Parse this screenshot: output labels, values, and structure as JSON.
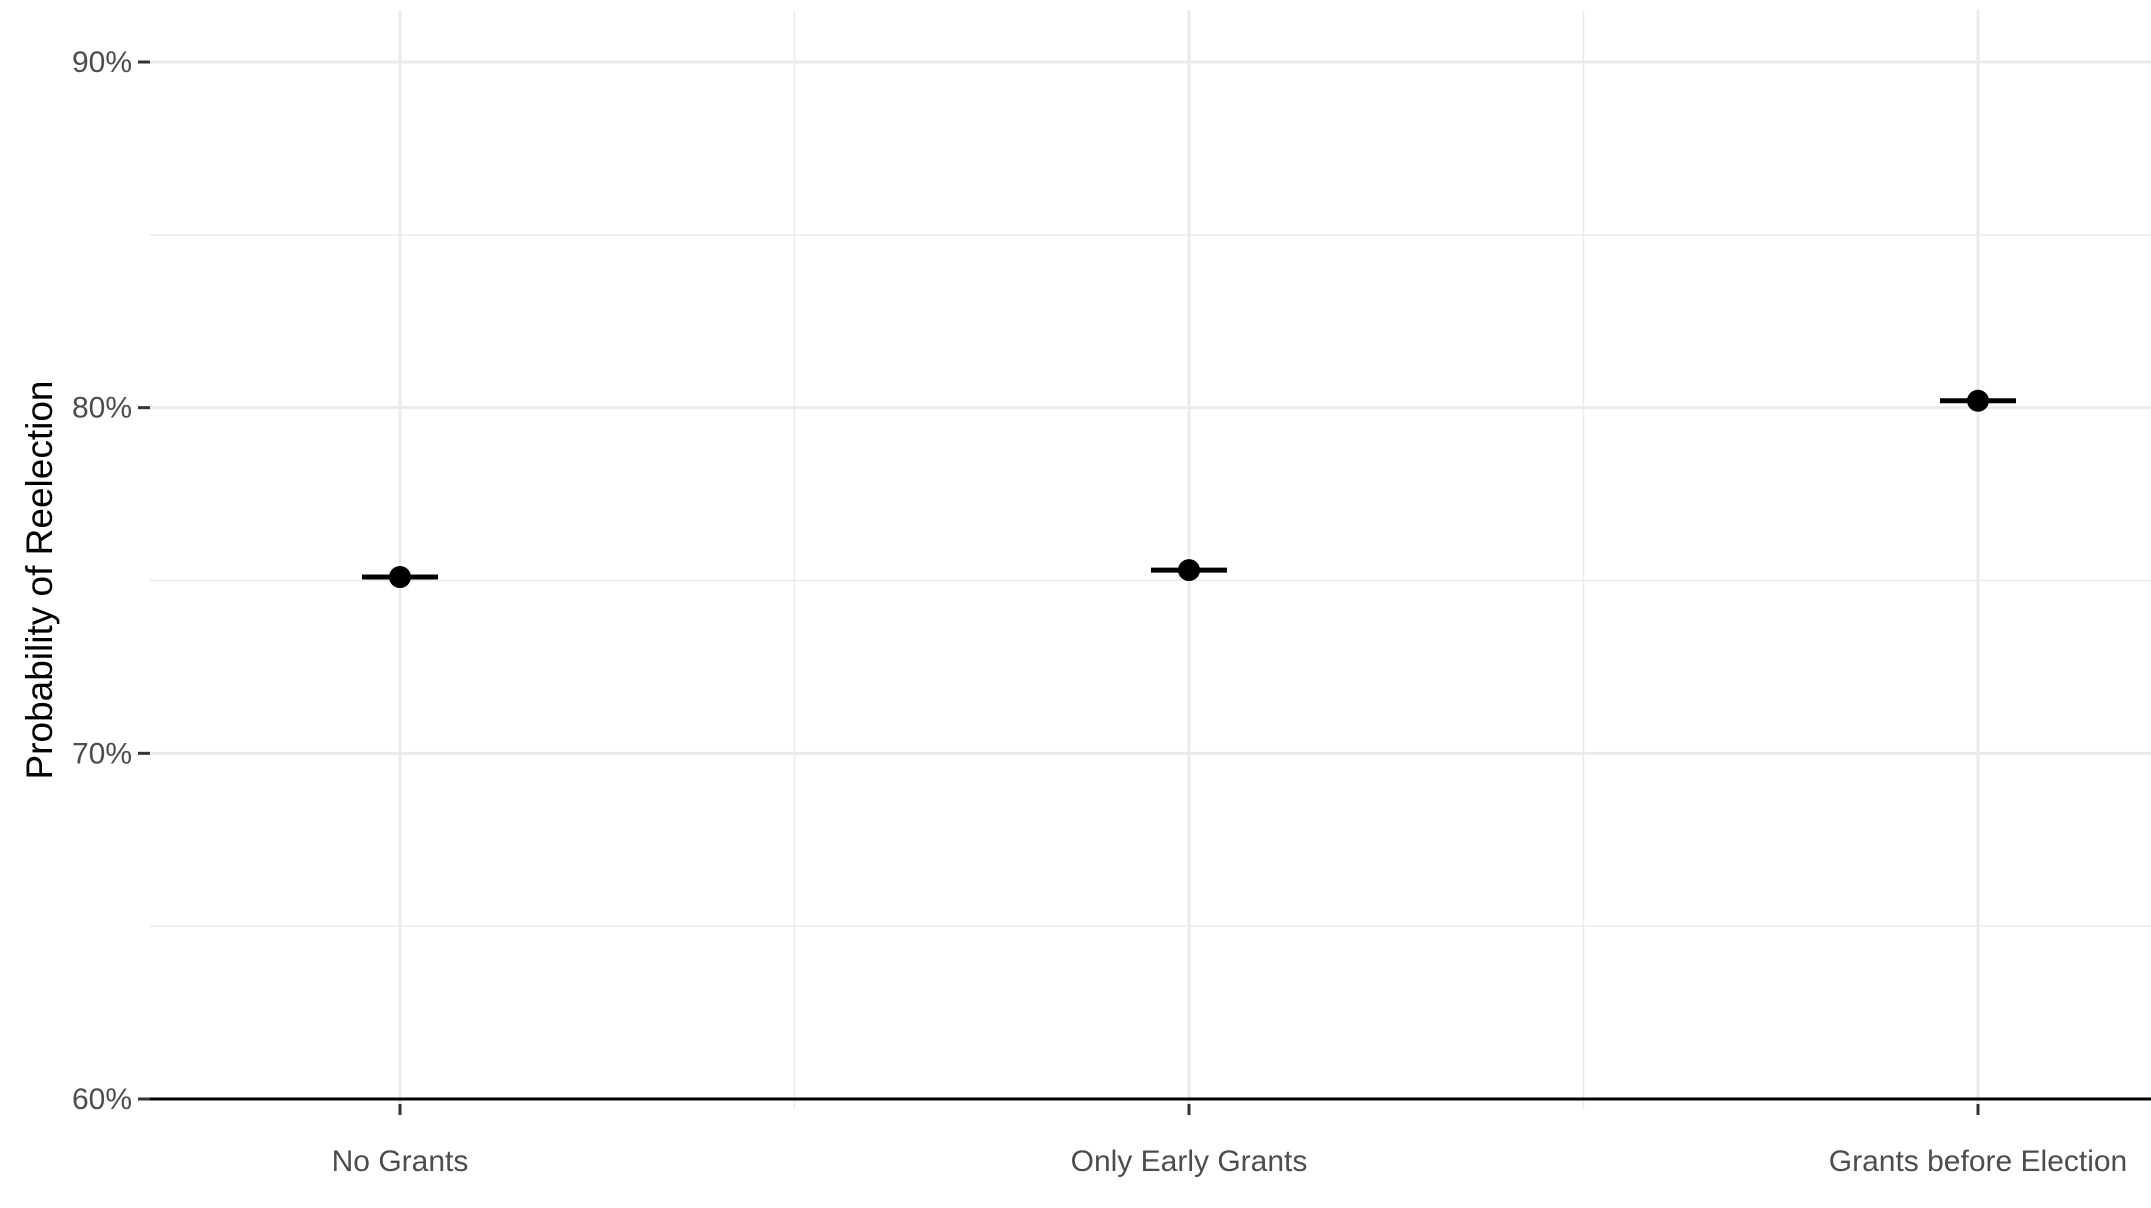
{
  "chart_data": {
    "type": "scatter",
    "title": "",
    "xlabel": "",
    "ylabel": "Probability of Reelection",
    "categories": [
      "No Grants",
      "Only Early Grants",
      "Grants before Election"
    ],
    "values": [
      75.1,
      75.3,
      80.2
    ],
    "error_low": [
      75.0,
      75.2,
      80.1
    ],
    "error_high": [
      75.2,
      75.4,
      80.3
    ],
    "ylim": [
      60,
      90
    ],
    "y_ticks": [
      60,
      70,
      80,
      90
    ],
    "y_tick_labels": [
      "60%",
      "70%",
      "80%",
      "90%"
    ],
    "grid": true,
    "legend": "none",
    "colors": {
      "point": "#000000",
      "grid": "#ebebeb",
      "baseline": "#000000",
      "tick_text": "#4d4d4d",
      "axis_title": "#000000"
    }
  }
}
